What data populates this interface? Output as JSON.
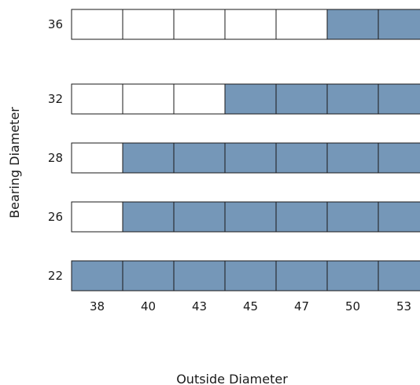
{
  "chart_data": {
    "type": "heatmap",
    "title": "",
    "xlabel": "Outside Diameter",
    "ylabel": "Bearing Diameter",
    "x_categories": [
      "38",
      "40",
      "43",
      "45",
      "47",
      "50",
      "53"
    ],
    "y_categories": [
      "36",
      "32",
      "28",
      "26",
      "22"
    ],
    "rows": [
      {
        "bearing": "36",
        "available": [
          0,
          0,
          0,
          0,
          0,
          1,
          1
        ]
      },
      {
        "bearing": "32",
        "available": [
          0,
          0,
          0,
          1,
          1,
          1,
          1
        ]
      },
      {
        "bearing": "28",
        "available": [
          0,
          1,
          1,
          1,
          1,
          1,
          1
        ]
      },
      {
        "bearing": "26",
        "available": [
          0,
          1,
          1,
          1,
          1,
          1,
          1
        ]
      },
      {
        "bearing": "22",
        "available": [
          1,
          1,
          1,
          1,
          1,
          1,
          1
        ]
      }
    ],
    "colors": {
      "available": "#7597b8",
      "unavailable": "#ffffff",
      "stroke": "#1a1a1a"
    }
  }
}
